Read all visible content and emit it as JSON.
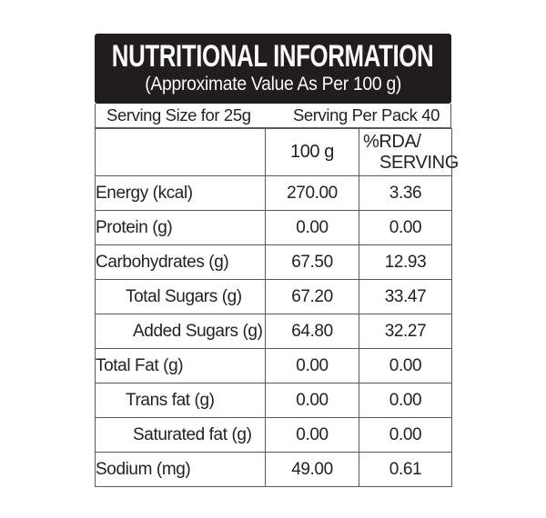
{
  "header": {
    "title": "NUTRITIONAL INFORMATION",
    "subtitle": "(Approximate Value As Per 100 g)"
  },
  "serving": {
    "size_label": "Serving Size for 25g",
    "per_pack_label": "Serving Per Pack 40"
  },
  "columns": {
    "per_100g": "100 g",
    "rda_line1": "%RDA/",
    "rda_line2": "SERVING"
  },
  "rows": [
    {
      "label": "Energy (kcal)",
      "per_100g": "270.00",
      "rda_per_serving": "3.36",
      "indent": 0
    },
    {
      "label": "Protein (g)",
      "per_100g": "0.00",
      "rda_per_serving": "0.00",
      "indent": 0
    },
    {
      "label": "Carbohydrates (g)",
      "per_100g": "67.50",
      "rda_per_serving": "12.93",
      "indent": 0
    },
    {
      "label": "Total Sugars (g)",
      "per_100g": "67.20",
      "rda_per_serving": "33.47",
      "indent": 1
    },
    {
      "label": "Added Sugars (g)",
      "per_100g": "64.80",
      "rda_per_serving": "32.27",
      "indent": 2
    },
    {
      "label": "Total Fat (g)",
      "per_100g": "0.00",
      "rda_per_serving": "0.00",
      "indent": 0
    },
    {
      "label": "Trans fat (g)",
      "per_100g": "0.00",
      "rda_per_serving": "0.00",
      "indent": 1
    },
    {
      "label": "Saturated fat (g)",
      "per_100g": "0.00",
      "rda_per_serving": "0.00",
      "indent": 2
    },
    {
      "label": "Sodium (mg)",
      "per_100g": "49.00",
      "rda_per_serving": "0.61",
      "indent": 0
    }
  ],
  "colors": {
    "header_bg": "#211d1e",
    "header_text": "#fafafa",
    "border": "#595959",
    "text": "#222222"
  }
}
